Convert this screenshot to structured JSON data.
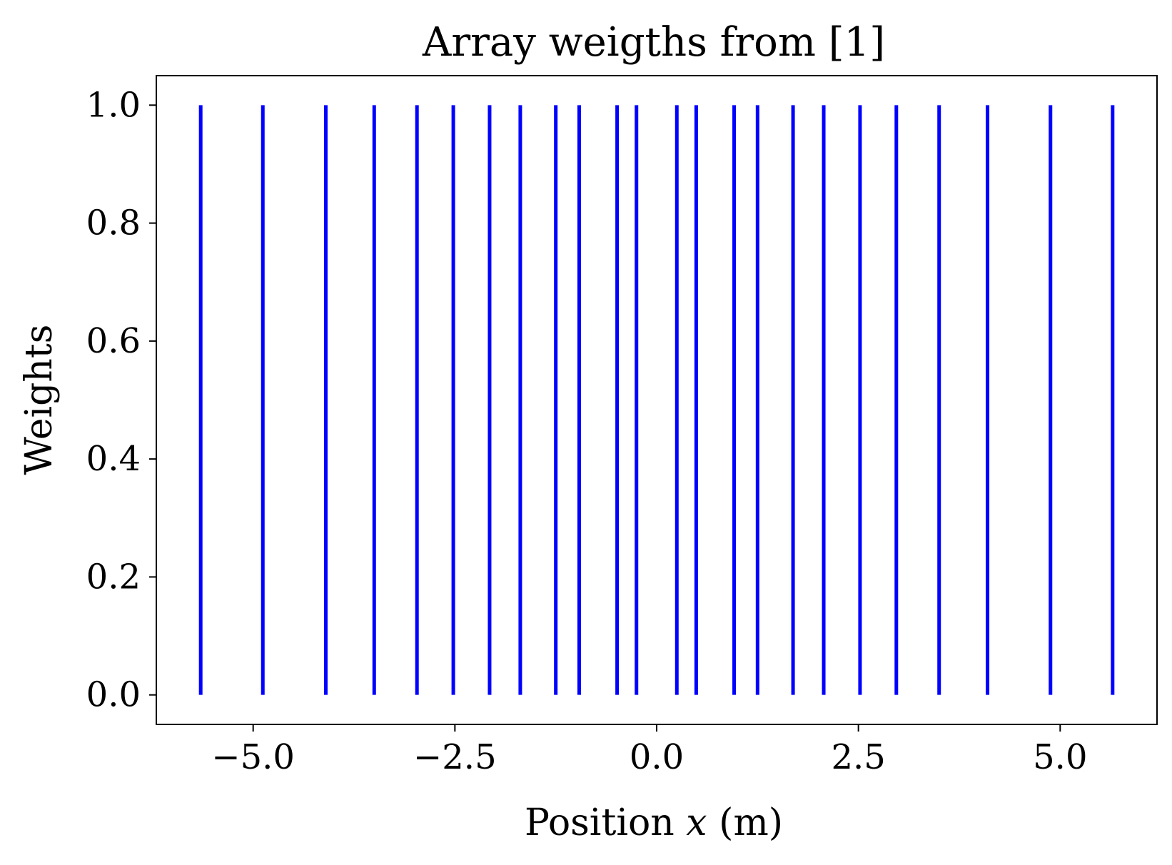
{
  "chart_data": {
    "type": "stem",
    "title": "Array weigths from [1]",
    "xlabel_parts": [
      "Position ",
      "x",
      " (m)"
    ],
    "ylabel": "Weights",
    "xlim": [
      -6.2,
      6.2
    ],
    "ylim": [
      -0.05,
      1.05
    ],
    "xticks": [
      -5.0,
      -2.5,
      0.0,
      2.5,
      5.0
    ],
    "xtick_labels": [
      "−5.0",
      "−2.5",
      "0.0",
      "2.5",
      "5.0"
    ],
    "yticks": [
      0.0,
      0.2,
      0.4,
      0.6,
      0.8,
      1.0
    ],
    "ytick_labels": [
      "0.0",
      "0.2",
      "0.4",
      "0.6",
      "0.8",
      "1.0"
    ],
    "grid": false,
    "color": "#0000ff",
    "positions": [
      -5.65,
      -4.88,
      -4.1,
      -3.5,
      -2.97,
      -2.52,
      -2.07,
      -1.69,
      -1.25,
      -0.96,
      -0.49,
      -0.25,
      0.25,
      0.49,
      0.96,
      1.25,
      1.69,
      2.07,
      2.52,
      2.97,
      3.5,
      4.1,
      4.88,
      5.65
    ],
    "weights": [
      1,
      1,
      1,
      1,
      1,
      1,
      1,
      1,
      1,
      1,
      1,
      1,
      1,
      1,
      1,
      1,
      1,
      1,
      1,
      1,
      1,
      1,
      1,
      1
    ]
  }
}
